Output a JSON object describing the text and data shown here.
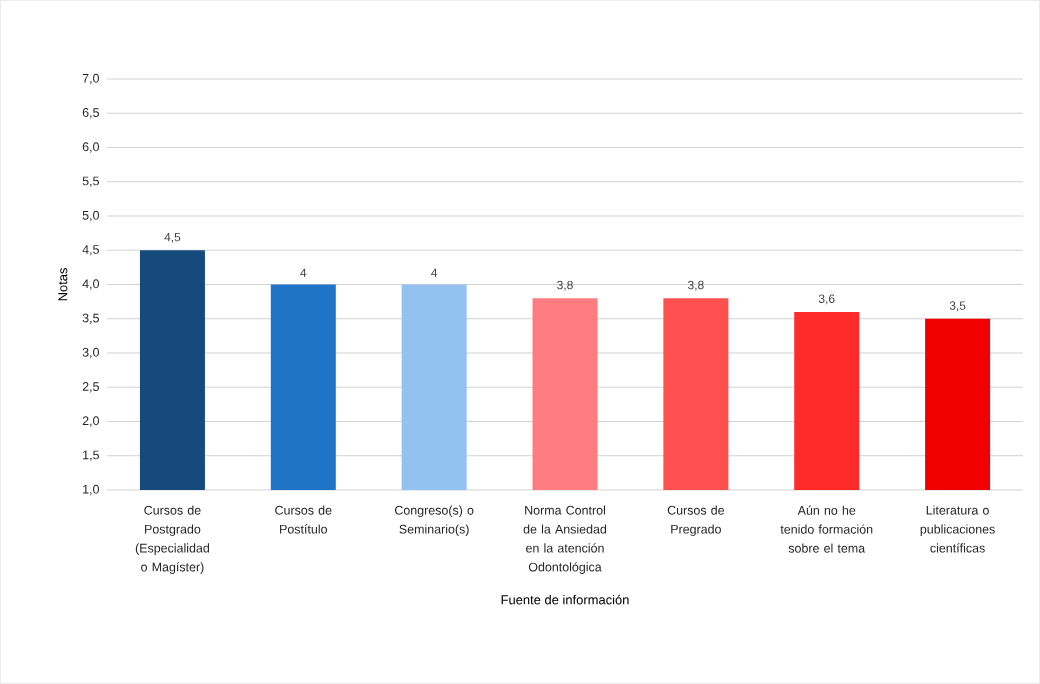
{
  "chart_data": {
    "type": "bar",
    "xlabel": "Fuente de información",
    "ylabel": "Notas",
    "categories": [
      "Cursos de Postgrado (Especialidad o Magíster)",
      "Cursos de Postítulo",
      "Congreso(s) o Seminario(s)",
      "Norma Control de la Ansiedad en la atención Odontológica",
      "Cursos de Pregrado",
      "Aún no he tenido formación sobre el tema",
      "Literatura o publicaciones científicas"
    ],
    "values": [
      4.5,
      4,
      4,
      3.8,
      3.8,
      3.6,
      3.5
    ],
    "value_labels": [
      "4,5",
      "4",
      "4",
      "3,8",
      "3,8",
      "3,6",
      "3,5"
    ],
    "colors": [
      "#174a7c",
      "#1f74c8",
      "#93c2f0",
      "#ff7c80",
      "#ff5050",
      "#ff2a2a",
      "#f00000"
    ],
    "ylim": [
      1,
      7
    ],
    "yticks": [
      {
        "value": 1,
        "label": "1,0"
      },
      {
        "value": 1.5,
        "label": "1,5"
      },
      {
        "value": 2,
        "label": "2,0"
      },
      {
        "value": 2.5,
        "label": "2,5"
      },
      {
        "value": 3,
        "label": "3,0"
      },
      {
        "value": 3.5,
        "label": "3,5"
      },
      {
        "value": 4,
        "label": "4,0"
      },
      {
        "value": 4.5,
        "label": "4,5"
      },
      {
        "value": 5,
        "label": "5,0"
      },
      {
        "value": 5.5,
        "label": "5,5"
      },
      {
        "value": 6,
        "label": "6,0"
      },
      {
        "value": 6.5,
        "label": "6,5"
      },
      {
        "value": 7,
        "label": "7,0"
      }
    ],
    "grid": "y"
  }
}
